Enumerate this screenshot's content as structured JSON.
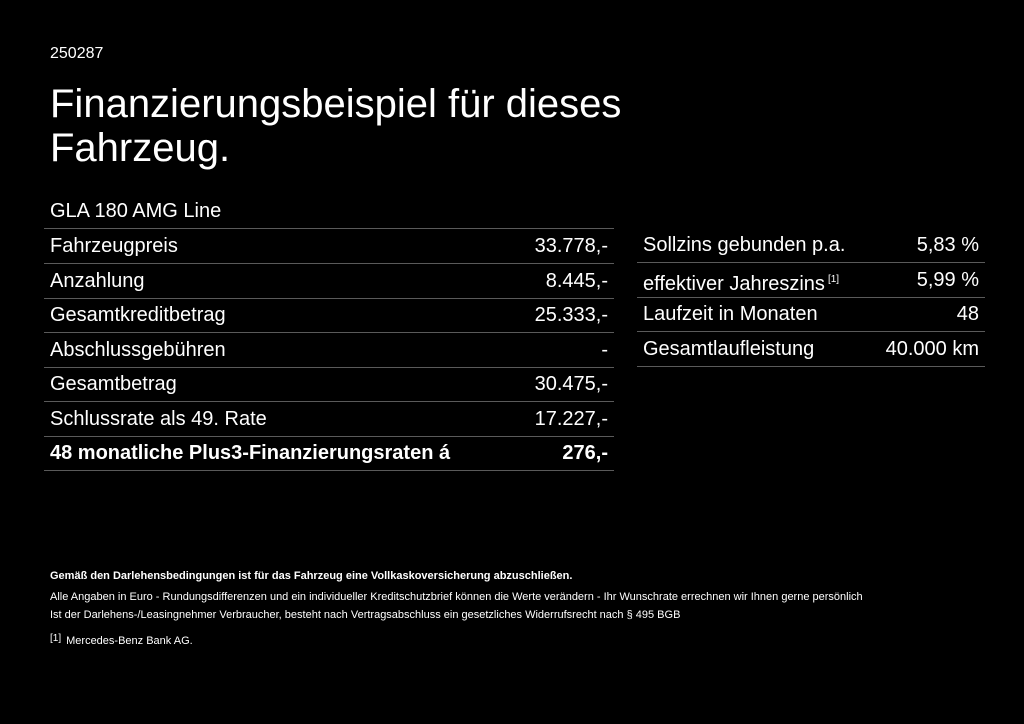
{
  "header": {
    "id": "250287",
    "title_line1": "Finanzierungsbeispiel für dieses",
    "title_line2": "Fahrzeug.",
    "model": "GLA 180 AMG Line"
  },
  "left_table": {
    "rows": [
      [
        "Fahrzeugpreis",
        "33.778,-"
      ],
      [
        "Anzahlung",
        "8.445,-"
      ],
      [
        "Gesamtkreditbetrag",
        "25.333,-"
      ],
      [
        "Abschlussgebühren",
        "-"
      ],
      [
        "Gesamtbetrag",
        "30.475,-"
      ],
      [
        "Schlussrate als 49. Rate",
        "17.227,-"
      ],
      [
        "48 monatliche Plus3-Finanzierungsraten á",
        "276,-"
      ]
    ]
  },
  "right_table": {
    "rows": [
      [
        "Sollzins gebunden p.a.",
        "5,83 %"
      ],
      [
        "effektiver Jahreszins",
        "5,99 %"
      ],
      [
        "Laufzeit in Monaten",
        "48"
      ],
      [
        "Gesamtlaufleistung",
        "40.000 km"
      ]
    ],
    "footnote_ref": "[1]"
  },
  "notes": {
    "insurance": "Gemäß den Darlehensbedingungen ist für das Fahrzeug eine Vollkaskoversicherung abzuschließen.",
    "line1": "Alle Angaben in Euro - Rundungsdifferenzen und ein individueller Kreditschutzbrief können die Werte verändern - Ihr Wunschrate errechnen wir Ihnen gerne persönlich",
    "line2": "Ist der Darlehens-/Leasingnehmer Verbraucher, besteht nach Vertragsabschluss ein gesetzliches Widerrufsrecht nach § 495 BGB",
    "footnote_mark": "[1]",
    "footnote_text": "Mercedes-Benz Bank AG."
  }
}
